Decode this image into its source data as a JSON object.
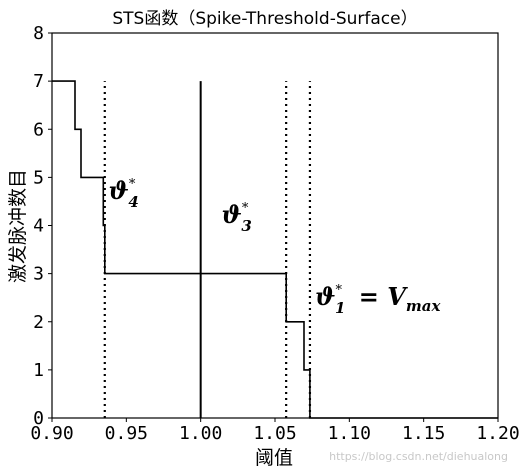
{
  "chart_data": {
    "type": "line",
    "title": "STS函数（Spike-Threshold-Surface）",
    "xlabel": "阈值",
    "ylabel": "激发脉冲数目",
    "xlim": [
      0.9,
      1.2
    ],
    "ylim": [
      0,
      8
    ],
    "x_ticks": [
      "0.90",
      "0.95",
      "1.00",
      "1.05",
      "1.10",
      "1.15",
      "1.20"
    ],
    "y_ticks": [
      "0",
      "1",
      "2",
      "3",
      "4",
      "5",
      "6",
      "7",
      "8"
    ],
    "grid": false,
    "series": [
      {
        "style": "step",
        "points": [
          [
            0.9,
            7
          ],
          [
            0.9155,
            7
          ],
          [
            0.9155,
            6
          ],
          [
            0.9195,
            6
          ],
          [
            0.9195,
            5
          ],
          [
            0.9345,
            5
          ],
          [
            0.9345,
            4
          ],
          [
            0.9355,
            4
          ],
          [
            0.9355,
            3
          ],
          [
            1.0575,
            3
          ],
          [
            1.0575,
            2
          ],
          [
            1.0695,
            2
          ],
          [
            1.0695,
            1
          ],
          [
            1.0735,
            1
          ],
          [
            1.0735,
            0
          ],
          [
            1.2,
            0
          ]
        ]
      }
    ],
    "vertical_lines": [
      {
        "x": 0.9355,
        "style": "dotted",
        "y_top": 7
      },
      {
        "x": 1.0,
        "style": "solid",
        "y_top": 7
      },
      {
        "x": 1.0575,
        "style": "dotted",
        "y_top": 7
      },
      {
        "x": 1.0735,
        "style": "dotted",
        "y_top": 7
      }
    ],
    "annotations": [
      {
        "id": "theta4",
        "symbol": "ϑ",
        "sub": "4",
        "sup": "*",
        "rest": "",
        "x": 0.938,
        "y": 4.55
      },
      {
        "id": "theta3",
        "symbol": "ϑ",
        "sub": "3",
        "sup": "*",
        "rest": "",
        "x": 1.014,
        "y": 4.05
      },
      {
        "id": "theta1",
        "symbol": "ϑ",
        "sub": "1",
        "sup": "*",
        "rest": "= V",
        "rest_sub": "max",
        "x": 1.077,
        "y": 2.35
      }
    ]
  },
  "watermark": "https://blog.csdn.net/diehualong"
}
